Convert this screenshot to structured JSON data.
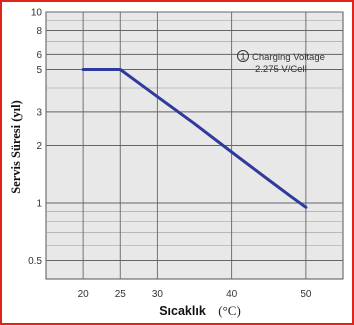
{
  "chart_data": {
    "type": "line",
    "xlabel": "Sıcaklık",
    "xlabel_unit": "(°C)",
    "ylabel": "Servis Süresi (yıl)",
    "y_scale": "log",
    "xlim": [
      15,
      55
    ],
    "ylim": [
      0.4,
      10
    ],
    "grid": true,
    "x_ticks": [
      20,
      25,
      30,
      40,
      50
    ],
    "y_ticks": [
      0.5,
      1,
      2,
      3,
      5,
      6,
      8,
      10
    ],
    "annotation": {
      "number": "1",
      "line1": "Charging Voltage",
      "line2": "2.275 V/Cell"
    },
    "series": [
      {
        "color": "#2f3b9c",
        "x": [
          20,
          25,
          30,
          35,
          40,
          45,
          48,
          50
        ],
        "y": [
          5,
          5,
          3.6,
          2.6,
          1.85,
          1.32,
          1.08,
          0.95
        ]
      }
    ]
  }
}
